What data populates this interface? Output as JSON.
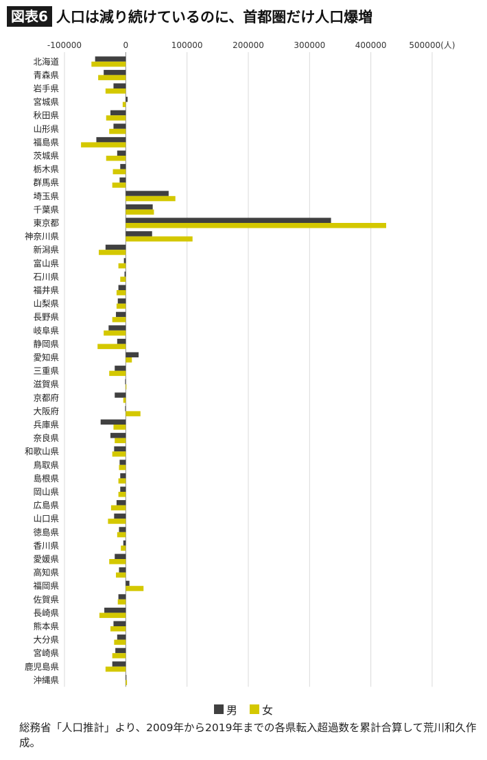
{
  "title": {
    "badge": "図表6",
    "text": "人口は減り続けているのに、首都圏だけ人口爆増"
  },
  "legend": {
    "male": "男",
    "female": "女"
  },
  "footnote": "総務省「人口推計」より、2009年から2019年までの各県転入超過数を累計合算して荒川和久作成。",
  "colors": {
    "male": "#404040",
    "female": "#d4c800"
  },
  "chart_data": {
    "type": "bar",
    "orientation": "horizontal",
    "xlim": [
      -100000,
      500000
    ],
    "x_ticks": [
      -100000,
      0,
      100000,
      200000,
      300000,
      400000,
      500000
    ],
    "x_tick_labels": [
      "-100000",
      "0",
      "100000",
      "200000",
      "300000",
      "400000",
      "500000(人)"
    ],
    "categories": [
      "北海道",
      "青森県",
      "岩手県",
      "宮城県",
      "秋田県",
      "山形県",
      "福島県",
      "茨城県",
      "栃木県",
      "群馬県",
      "埼玉県",
      "千葉県",
      "東京都",
      "神奈川県",
      "新潟県",
      "富山県",
      "石川県",
      "福井県",
      "山梨県",
      "長野県",
      "岐阜県",
      "静岡県",
      "愛知県",
      "三重県",
      "滋賀県",
      "京都府",
      "大阪府",
      "兵庫県",
      "奈良県",
      "和歌山県",
      "鳥取県",
      "島根県",
      "岡山県",
      "広島県",
      "山口県",
      "徳島県",
      "香川県",
      "愛媛県",
      "高知県",
      "福岡県",
      "佐賀県",
      "長崎県",
      "熊本県",
      "大分県",
      "宮崎県",
      "鹿児島県",
      "沖縄県"
    ],
    "series": [
      {
        "name": "男",
        "values": [
          -50000,
          -36000,
          -20000,
          3000,
          -25000,
          -20000,
          -48000,
          -14000,
          -9000,
          -10000,
          70000,
          44000,
          335000,
          43000,
          -33000,
          -3000,
          -2000,
          -12000,
          -13000,
          -16000,
          -28000,
          -14000,
          21000,
          -18000,
          -1000,
          -18000,
          -1000,
          -41000,
          -25000,
          -19000,
          -10000,
          -9000,
          -9000,
          -15000,
          -19000,
          -11000,
          -4000,
          -18000,
          -11000,
          6000,
          -12000,
          -35000,
          -20000,
          -14000,
          -17000,
          -22000,
          1000
        ]
      },
      {
        "name": "女",
        "values": [
          -56000,
          -45000,
          -33000,
          -5000,
          -32000,
          -27000,
          -73000,
          -32000,
          -21000,
          -22000,
          81000,
          46000,
          425000,
          109000,
          -44000,
          -12000,
          -9000,
          -15000,
          -15000,
          -22000,
          -36000,
          -46000,
          10000,
          -27000,
          1000,
          -4000,
          24000,
          -20000,
          -18000,
          -22000,
          -11000,
          -12000,
          -12000,
          -24000,
          -29000,
          -14000,
          -8000,
          -27000,
          -16000,
          29000,
          -13000,
          -43000,
          -25000,
          -19000,
          -22000,
          -33000,
          2000
        ]
      }
    ]
  }
}
